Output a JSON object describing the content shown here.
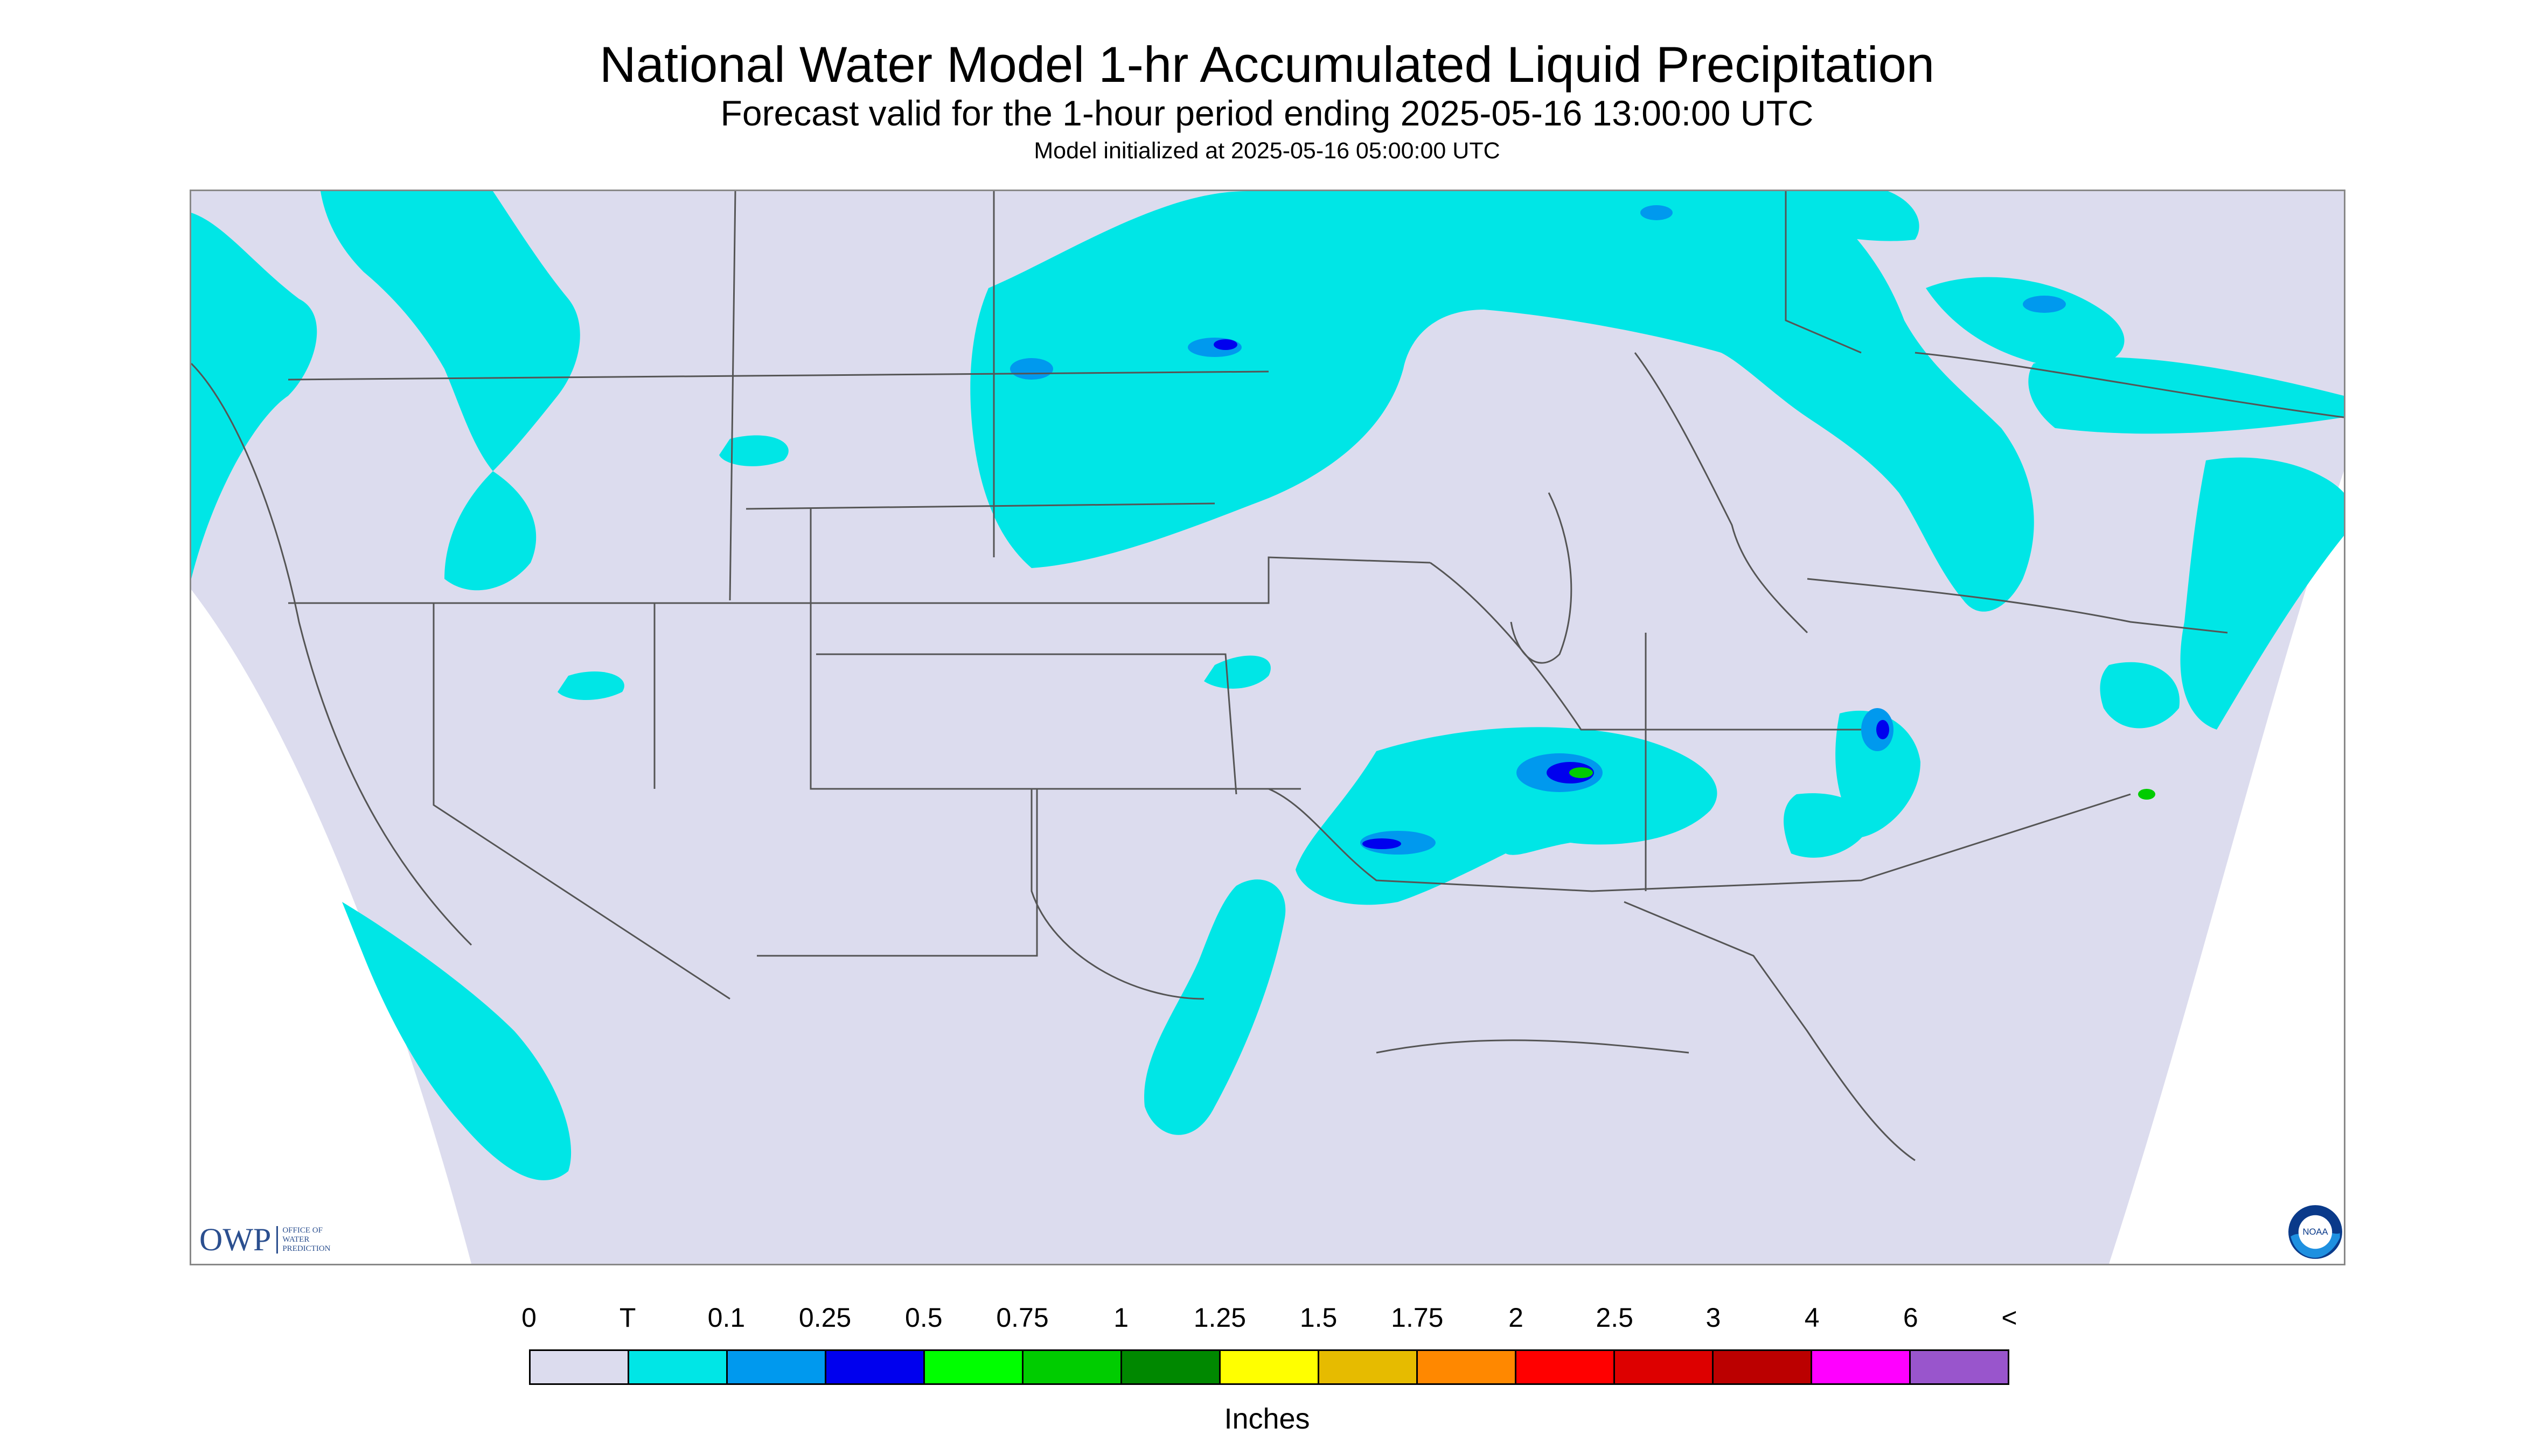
{
  "header": {
    "title": "National Water Model 1-hr Accumulated Liquid Precipitation",
    "subtitle": "Forecast valid for the 1-hour period ending 2025-05-16 13:00:00 UTC",
    "init_line": "Model initialized at 2025-05-16 05:00:00 UTC"
  },
  "legend": {
    "labels": [
      "0",
      "T",
      "0.1",
      "0.25",
      "0.5",
      "0.75",
      "1",
      "1.25",
      "1.5",
      "1.75",
      "2",
      "2.5",
      "3",
      "4",
      "6",
      "<"
    ],
    "colors": [
      "#dcdcee",
      "#00e6e6",
      "#0099ee",
      "#0000ee",
      "#00ff00",
      "#00cc00",
      "#008800",
      "#ffff00",
      "#e6bb00",
      "#ff8800",
      "#ff0000",
      "#dd0000",
      "#bb0000",
      "#ff00ff",
      "#9955cc"
    ],
    "units": "Inches"
  },
  "logos": {
    "owp_mark": "OWP",
    "owp_text": [
      "OFFICE OF",
      "WATER",
      "PREDICTION"
    ],
    "noaa_text": "NOAA"
  },
  "map": {
    "domain_fill": "#dcdcee",
    "precip_light": "#00e6e6",
    "precip_moderate": "#0099ee",
    "precip_heavy": "#0000ee",
    "precip_green": "#00cc00",
    "boundary_color": "#555555"
  }
}
